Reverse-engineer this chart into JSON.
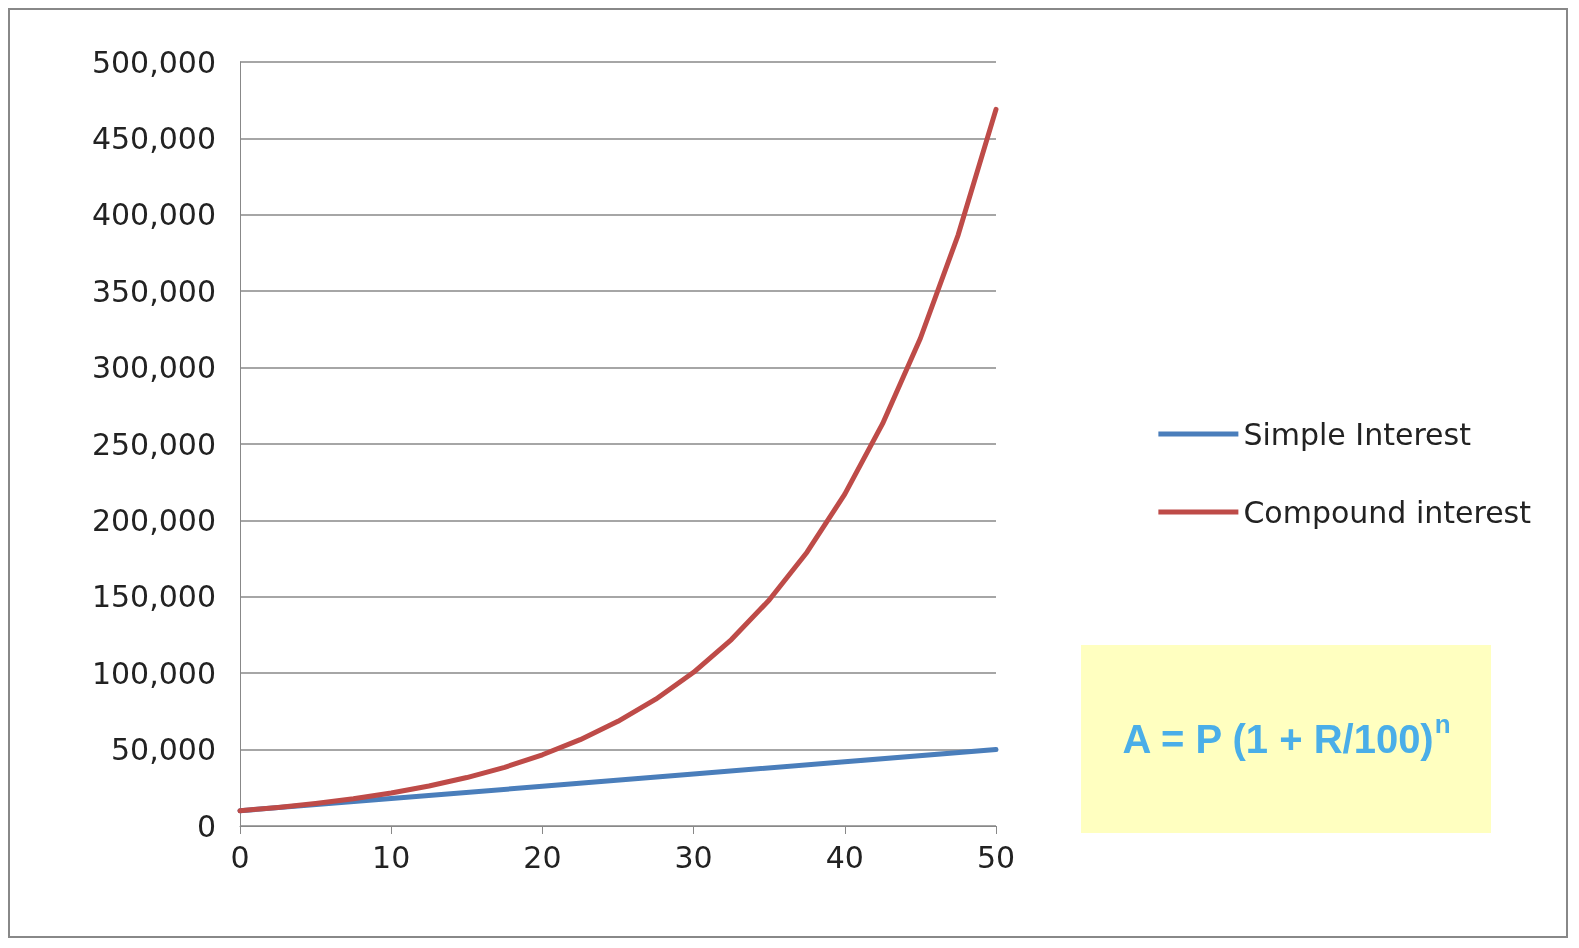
{
  "chart_data": {
    "type": "line",
    "x": [
      0,
      2.5,
      5,
      7.5,
      10,
      12.5,
      15,
      17.5,
      20,
      22.5,
      25,
      27.5,
      30,
      32.5,
      35,
      37.5,
      40,
      42.5,
      45,
      47.5,
      50
    ],
    "series": [
      {
        "name": "Simple Interest",
        "color": "#4a7ebb",
        "x": [
          0,
          10,
          20,
          30,
          40,
          50
        ],
        "values": [
          10000,
          18000,
          26000,
          34000,
          42000,
          50000
        ]
      },
      {
        "name": "Compound interest",
        "color": "#be4b48",
        "values": [
          10000,
          12100,
          14700,
          17800,
          21600,
          26200,
          31700,
          38400,
          46600,
          56500,
          68500,
          83000,
          100600,
          122000,
          147900,
          179200,
          217200,
          263300,
          319200,
          386900,
          469000
        ]
      }
    ],
    "xlim": [
      0,
      50
    ],
    "xticks": [
      0,
      10,
      20,
      30,
      40,
      50
    ],
    "ylim": [
      0,
      500000
    ],
    "yticks": [
      0,
      {
        "value": 50000,
        "label": "50,000"
      },
      {
        "value": 100000,
        "label": "100,000"
      },
      {
        "value": 150000,
        "label": "150,000"
      },
      {
        "value": 200000,
        "label": "200,000"
      },
      {
        "value": 250000,
        "label": "250,000"
      },
      {
        "value": 300000,
        "label": "300,000"
      },
      {
        "value": 350000,
        "label": "350,000"
      },
      {
        "value": 400000,
        "label": "400,000"
      },
      {
        "value": 450000,
        "label": "450,000"
      },
      {
        "value": 500000,
        "label": "500,000"
      }
    ],
    "grid": "y",
    "legend": "right",
    "marker": "none",
    "line_style": "solid",
    "annotations": [
      "A = P (1 + R/100)$^{n}$"
    ]
  }
}
